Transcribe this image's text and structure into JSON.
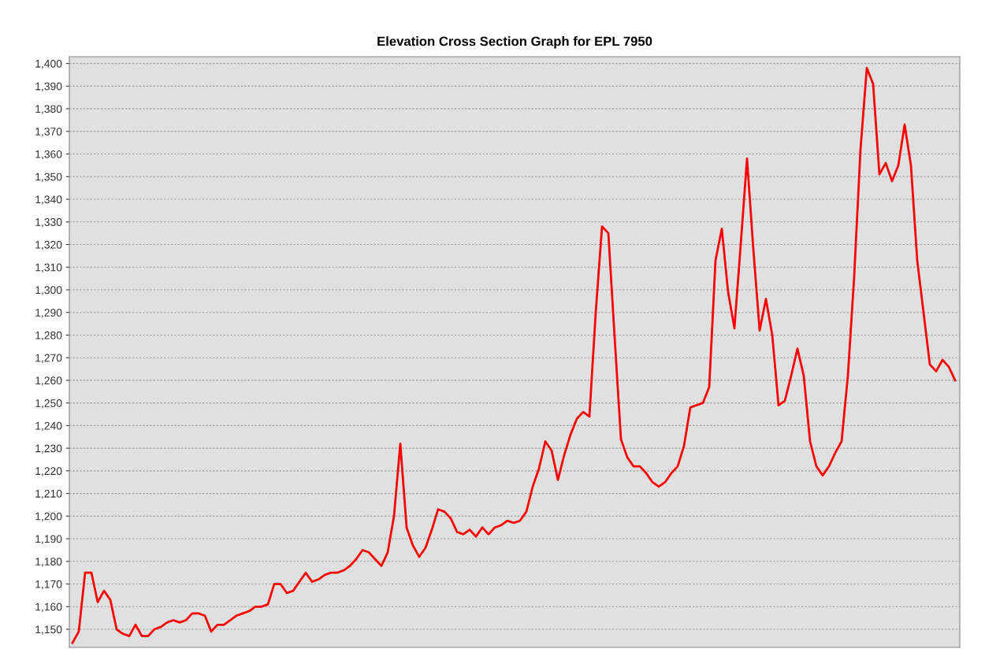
{
  "chart_data": {
    "type": "line",
    "title": "Elevation Cross Section Graph for EPL 7950",
    "categories": [
      null,
      null,
      null,
      null,
      null,
      null,
      null,
      null,
      null,
      null,
      null,
      null,
      null,
      null,
      null,
      null,
      null,
      null,
      null,
      null,
      null,
      null,
      null,
      null,
      null,
      null,
      null,
      null,
      null,
      null,
      null,
      null,
      null,
      null,
      null,
      null,
      null,
      null,
      null,
      null,
      null,
      null,
      null,
      null,
      null,
      null,
      null,
      null,
      null,
      null,
      null,
      null,
      null,
      null,
      null,
      null,
      null,
      null,
      null,
      null,
      null,
      null,
      null,
      null,
      null,
      null,
      null,
      null,
      null,
      null,
      null,
      null,
      null,
      null,
      null,
      null,
      null,
      null,
      null,
      null,
      null,
      null,
      null,
      null,
      null,
      null,
      null,
      null,
      null,
      null,
      null,
      null,
      null,
      null,
      null,
      null,
      null,
      null,
      null,
      null,
      null,
      null,
      null,
      null,
      null,
      null,
      null,
      null,
      null,
      null,
      null,
      null,
      null,
      null,
      null,
      null,
      null,
      null,
      null,
      null,
      null,
      null,
      null,
      null,
      null,
      null,
      null,
      null,
      null,
      null,
      null,
      null,
      null,
      null,
      null,
      null,
      null,
      null,
      null,
      null,
      null
    ],
    "series": [
      {
        "color": "#ff0000",
        "values": [
          1144,
          1149,
          1175,
          1175,
          1162,
          1167,
          1163,
          1150,
          1148,
          1147,
          1152,
          1147,
          1147,
          1150,
          1151,
          1153,
          1154,
          1153,
          1154,
          1157,
          1157,
          1156,
          1149,
          1152,
          1152,
          1154,
          1156,
          1157,
          1158,
          1160,
          1160,
          1161,
          1170,
          1170,
          1166,
          1167,
          1171,
          1175,
          1171,
          1172,
          1174,
          1175,
          1175,
          1176,
          1178,
          1181,
          1185,
          1184,
          1181,
          1178,
          1184,
          1200,
          1232,
          1195,
          1187,
          1182,
          1186,
          1194,
          1203,
          1202,
          1199,
          1193,
          1192,
          1194,
          1191,
          1195,
          1192,
          1195,
          1196,
          1198,
          1197,
          1198,
          1202,
          1213,
          1221,
          1233,
          1229,
          1216,
          1227,
          1236,
          1243,
          1246,
          1244,
          1290,
          1328,
          1325,
          1279,
          1234,
          1226,
          1222,
          1222,
          1219,
          1215,
          1213,
          1215,
          1219,
          1222,
          1231,
          1248,
          1249,
          1250,
          1257,
          1313,
          1327,
          1299,
          1283,
          1320,
          1358,
          1318,
          1282,
          1296,
          1280,
          1249,
          1251,
          1262,
          1274,
          1262,
          1233,
          1222,
          1218,
          1222,
          1228,
          1233,
          1262,
          1306,
          1362,
          1398,
          1391,
          1351,
          1356,
          1348,
          1355,
          1373,
          1355,
          1313,
          1290,
          1267,
          1264,
          1269,
          1266,
          1260
        ]
      }
    ],
    "ylim": [
      1142,
      1403
    ],
    "yticks": [
      {
        "value": 1150,
        "label": "1,150"
      },
      {
        "value": 1160,
        "label": "1,160"
      },
      {
        "value": 1170,
        "label": "1,170"
      },
      {
        "value": 1180,
        "label": "1,180"
      },
      {
        "value": 1190,
        "label": "1,190"
      },
      {
        "value": 1200,
        "label": "1,200"
      },
      {
        "value": 1210,
        "label": "1,210"
      },
      {
        "value": 1220,
        "label": "1,220"
      },
      {
        "value": 1230,
        "label": "1,230"
      },
      {
        "value": 1240,
        "label": "1,240"
      },
      {
        "value": 1250,
        "label": "1,250"
      },
      {
        "value": 1260,
        "label": "1,260"
      },
      {
        "value": 1270,
        "label": "1,270"
      },
      {
        "value": 1280,
        "label": "1,280"
      },
      {
        "value": 1290,
        "label": "1,290"
      },
      {
        "value": 1300,
        "label": "1,300"
      },
      {
        "value": 1310,
        "label": "1,310"
      },
      {
        "value": 1320,
        "label": "1,320"
      },
      {
        "value": 1330,
        "label": "1,330"
      },
      {
        "value": 1340,
        "label": "1,340"
      },
      {
        "value": 1350,
        "label": "1,350"
      },
      {
        "value": 1360,
        "label": "1,360"
      },
      {
        "value": 1370,
        "label": "1,370"
      },
      {
        "value": 1380,
        "label": "1,380"
      },
      {
        "value": 1390,
        "label": "1,390"
      },
      {
        "value": 1400,
        "label": "1,400"
      }
    ],
    "grid": "y",
    "line_style": "solid",
    "marker": "none",
    "tick_labels": "y"
  }
}
